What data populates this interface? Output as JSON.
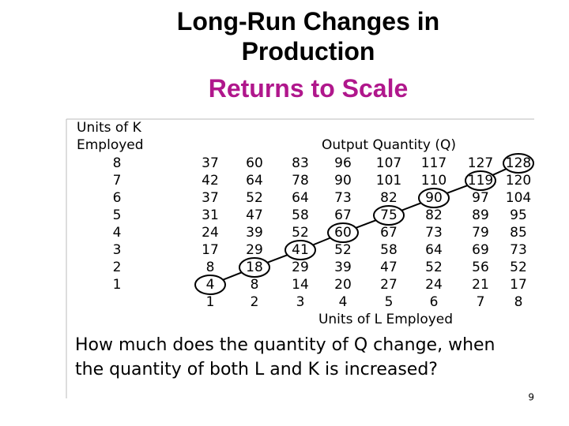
{
  "header": {
    "title": "Long-Run Changes in Production",
    "subtitle": "Returns to Scale"
  },
  "table": {
    "k_label_lines": [
      "Units of K",
      "Employed"
    ],
    "output_label": "Output Quantity (Q)",
    "rows": [
      {
        "k": 8,
        "values": [
          37,
          60,
          83,
          96,
          107,
          117,
          127,
          128
        ]
      },
      {
        "k": 7,
        "values": [
          42,
          64,
          78,
          90,
          101,
          110,
          119,
          120
        ]
      },
      {
        "k": 6,
        "values": [
          37,
          52,
          64,
          73,
          82,
          90,
          97,
          104
        ]
      },
      {
        "k": 5,
        "values": [
          31,
          47,
          58,
          67,
          75,
          82,
          89,
          95
        ]
      },
      {
        "k": 4,
        "values": [
          24,
          39,
          52,
          60,
          67,
          73,
          79,
          85
        ]
      },
      {
        "k": 3,
        "values": [
          17,
          29,
          41,
          52,
          58,
          64,
          69,
          73
        ]
      },
      {
        "k": 2,
        "values": [
          8,
          18,
          29,
          39,
          47,
          52,
          56,
          52
        ]
      },
      {
        "k": 1,
        "values": [
          4,
          8,
          14,
          20,
          27,
          24,
          21,
          17
        ]
      }
    ],
    "l_values": [
      1,
      2,
      3,
      4,
      5,
      6,
      7,
      8
    ],
    "l_label": "Units of L Employed"
  },
  "question_lines": [
    "How much does the quantity of Q change, when",
    "the quantity of both L and K  is increased?"
  ],
  "page_number": 9
}
